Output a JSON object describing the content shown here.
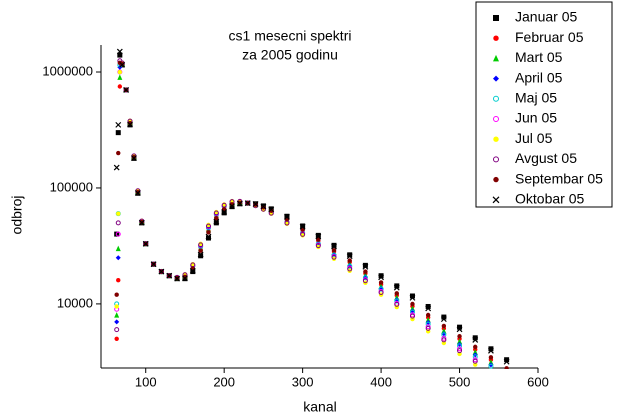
{
  "chart_data": {
    "type": "scatter",
    "title": "cs1 mesecni spektri",
    "subtitle": "za 2005 godinu",
    "x_label": "kanal",
    "y_label": "odbroj",
    "log_y": true,
    "legend": "top-right",
    "xlim": [
      43,
      600
    ],
    "xticks": [
      100,
      200,
      300,
      400,
      500,
      600
    ],
    "ylim": [
      2800,
      1710000
    ],
    "yticks": [
      10000,
      100000,
      1000000
    ],
    "x": [
      63,
      65,
      67,
      70,
      75,
      80,
      85,
      90,
      95,
      100,
      110,
      120,
      130,
      140,
      150,
      160,
      170,
      180,
      190,
      200,
      210,
      220,
      230,
      240,
      250,
      260,
      280,
      300,
      320,
      340,
      360,
      380,
      400,
      420,
      440,
      460,
      480,
      500,
      520,
      540,
      560
    ],
    "series": [
      {
        "name": "Januar 05",
        "color": "#000000",
        "marker": "square",
        "values": [
          40000,
          300000,
          1400000,
          1150000,
          700000,
          350000,
          180000,
          90000,
          50000,
          33000,
          22000,
          19000,
          17500,
          16500,
          16500,
          19000,
          26000,
          37000,
          50000,
          61000,
          69000,
          73000,
          74000,
          73000,
          70000,
          66000,
          57000,
          47000,
          39000,
          32000,
          26500,
          21500,
          17500,
          14300,
          11700,
          9500,
          7700,
          6300,
          5100,
          4100,
          3300
        ]
      },
      {
        "name": "Februar 05",
        "color": "#ff0000",
        "marker": "dot",
        "values": [
          5000,
          16000,
          750000,
          1175000,
          700000,
          365000,
          185000,
          92500,
          51000,
          33000,
          22000,
          19000,
          17500,
          16750,
          17250,
          20500,
          29500,
          42500,
          56000,
          66500,
          73000,
          75000,
          74000,
          71500,
          67500,
          63000,
          53000,
          43000,
          35000,
          28250,
          22900,
          18350,
          14750,
          11850,
          9550,
          7650,
          6150,
          5000,
          4050,
          3300,
          null
        ]
      },
      {
        "name": "Mart 05",
        "color": "#00cc00",
        "marker": "triangle",
        "values": [
          8000,
          30000,
          900000,
          1180000,
          700000,
          368000,
          186000,
          93000,
          51200,
          33000,
          22000,
          19000,
          17500,
          16800,
          17400,
          20800,
          30200,
          43600,
          57200,
          67600,
          73800,
          75400,
          74000,
          71200,
          67000,
          62400,
          52200,
          42200,
          34200,
          27500,
          22180,
          17720,
          14200,
          11360,
          9120,
          7280,
          5840,
          4740,
          3840,
          3140,
          null
        ]
      },
      {
        "name": "April 05",
        "color": "#0000ff",
        "marker": "diamond",
        "values": [
          7000,
          25000,
          1100000,
          1185000,
          700000,
          371000,
          187000,
          93500,
          51400,
          33000,
          22000,
          19000,
          17500,
          16850,
          17550,
          21100,
          30900,
          44700,
          58400,
          68700,
          74600,
          75800,
          74000,
          70900,
          66500,
          61800,
          51400,
          41400,
          33400,
          26750,
          21460,
          17090,
          13650,
          10870,
          8690,
          6910,
          5530,
          4480,
          3630,
          2980,
          null
        ]
      },
      {
        "name": "Maj 05",
        "color": "#00cccc",
        "marker": "ring",
        "values": [
          10000,
          60000,
          1150000,
          1187500,
          700000,
          372500,
          187500,
          93750,
          51500,
          33000,
          22000,
          19000,
          17500,
          16900,
          17600,
          21250,
          31250,
          45250,
          59000,
          69250,
          75000,
          76000,
          74000,
          70750,
          66250,
          61500,
          51000,
          41000,
          33000,
          26400,
          21100,
          16800,
          13400,
          10600,
          8500,
          6700,
          5400,
          4350,
          3500,
          2900,
          null
        ]
      },
      {
        "name": "Jun 05",
        "color": "#ff00ff",
        "marker": "ring",
        "values": [
          9000,
          40000,
          1000000,
          1192500,
          700000,
          375500,
          188500,
          94250,
          51700,
          33000,
          22000,
          19000,
          17500,
          16900,
          17800,
          21550,
          31950,
          46350,
          60200,
          70350,
          75800,
          76400,
          74000,
          70450,
          65750,
          60900,
          50200,
          40200,
          32200,
          25600,
          20400,
          16150,
          12800,
          10100,
          8050,
          6350,
          5050,
          4100,
          3300,
          null,
          null
        ]
      },
      {
        "name": "Jul 05",
        "color": "#ffff00",
        "marker": "dot",
        "values": [
          9500,
          60000,
          1000000,
          1200000,
          700000,
          380000,
          190000,
          95000,
          52000,
          33000,
          22000,
          19000,
          17500,
          17000,
          18000,
          22000,
          33000,
          48000,
          62000,
          72000,
          77000,
          77000,
          74000,
          70000,
          65000,
          60000,
          49000,
          39000,
          31000,
          24500,
          19300,
          15200,
          12000,
          9400,
          7400,
          5800,
          4600,
          3700,
          3000,
          null,
          null
        ]
      },
      {
        "name": "Avgust 05",
        "color": "#800080",
        "marker": "ring",
        "values": [
          6000,
          50000,
          1250000,
          1195000,
          700000,
          377000,
          189000,
          94500,
          51800,
          33000,
          22000,
          19000,
          17500,
          16950,
          17850,
          21700,
          32300,
          46900,
          60800,
          70900,
          76200,
          76600,
          74000,
          70300,
          65500,
          60600,
          49800,
          39800,
          31800,
          25250,
          20000,
          15850,
          12550,
          9900,
          7850,
          6150,
          4900,
          3950,
          3200,
          null,
          null
        ]
      },
      {
        "name": "Septembar 05",
        "color": "#800000",
        "marker": "dot",
        "values": [
          12000,
          200000,
          1200000,
          1170000,
          700000,
          362000,
          184000,
          92000,
          50800,
          33000,
          22000,
          19000,
          17500,
          16700,
          17100,
          20200,
          28800,
          41400,
          54800,
          65400,
          72200,
          74600,
          74000,
          71800,
          68000,
          63600,
          53800,
          43800,
          35800,
          29000,
          23620,
          18980,
          15300,
          12340,
          9980,
          8020,
          6460,
          5260,
          4260,
          3460,
          2780
        ]
      },
      {
        "name": "Oktobar 05",
        "color": "#000000",
        "marker": "cross",
        "values": [
          150000,
          350000,
          1500000,
          1155000,
          700000,
          353000,
          181000,
          90500,
          50200,
          33000,
          22000,
          19000,
          17500,
          16550,
          16650,
          19300,
          26700,
          38100,
          51200,
          62100,
          69800,
          73400,
          74000,
          72700,
          69500,
          65400,
          56200,
          46200,
          38200,
          31250,
          25780,
          20870,
          16950,
          13810,
          11270,
          9130,
          7390,
          6040,
          4890,
          3940,
          3170
        ]
      }
    ]
  }
}
